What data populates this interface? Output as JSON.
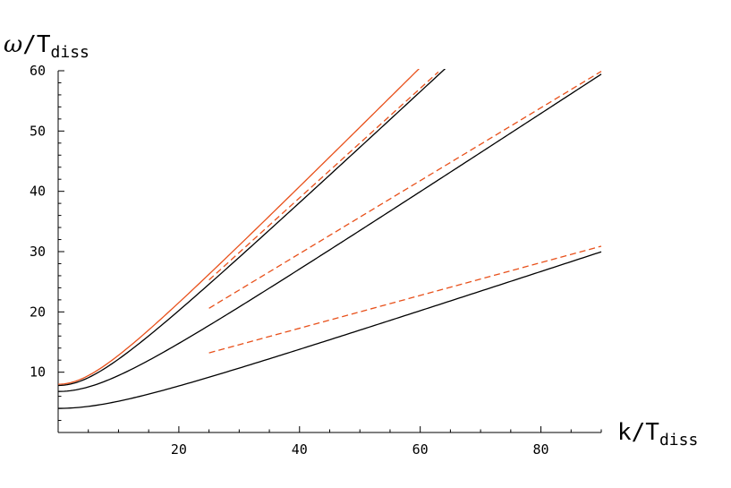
{
  "chart_data": {
    "type": "line",
    "title": "",
    "xlabel": {
      "main": "k/T",
      "sub": "diss"
    },
    "ylabel": {
      "prefix": "ω",
      "main": "/T",
      "sub": "diss"
    },
    "xlim": [
      0,
      90
    ],
    "ylim": [
      0,
      60
    ],
    "xticks": [
      20,
      40,
      60,
      80
    ],
    "yticks": [
      10,
      20,
      30,
      40,
      50,
      60
    ],
    "grid": false,
    "legend": "none",
    "colors": {
      "black": "#000000",
      "orange": "#e8501a"
    },
    "series": [
      {
        "style": "solid",
        "color": "#e8501a",
        "x": [
          0,
          60
        ],
        "y": [
          8.0,
          60.0
        ],
        "mass": 8.0,
        "speed": 1.0
      },
      {
        "style": "solid",
        "color": "#000000",
        "x": [
          0,
          90
        ],
        "y": [
          7.8,
          84.0
        ],
        "mass": 7.8,
        "speed": 0.933
      },
      {
        "style": "solid",
        "color": "#000000",
        "x": [
          0,
          90
        ],
        "y": [
          6.8,
          59.6
        ],
        "mass": 6.8,
        "speed": 0.656
      },
      {
        "style": "solid",
        "color": "#000000",
        "x": [
          0,
          90
        ],
        "y": [
          4.0,
          30.1
        ],
        "mass": 4.0,
        "speed": 0.33
      },
      {
        "style": "dashed",
        "color": "#e8501a",
        "x": [
          25,
          63
        ],
        "y": [
          25.3,
          59.8
        ]
      },
      {
        "style": "dashed",
        "color": "#e8501a",
        "x": [
          25,
          90
        ],
        "y": [
          20.6,
          59.9
        ]
      },
      {
        "style": "dashed",
        "color": "#e8501a",
        "x": [
          25,
          90
        ],
        "y": [
          13.2,
          30.9
        ]
      }
    ]
  }
}
